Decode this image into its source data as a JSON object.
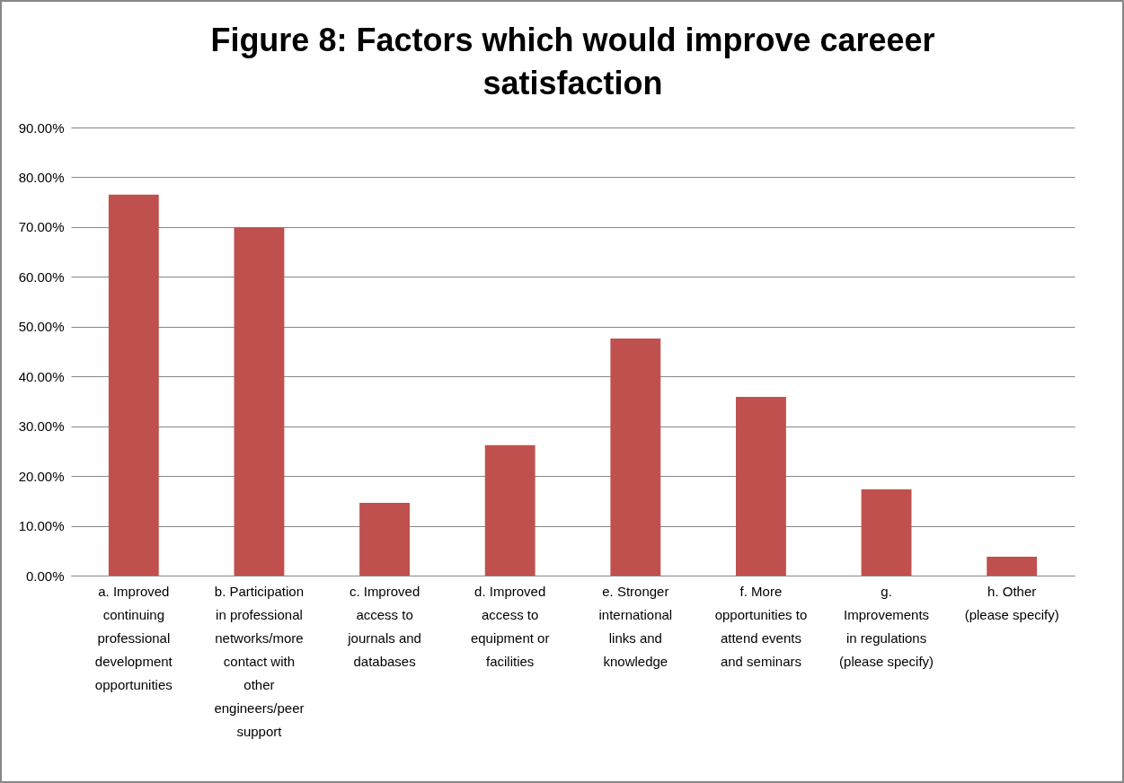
{
  "chart_data": {
    "type": "bar",
    "title": "Figure 8: Factors which would improve careeer satisfaction",
    "categories": [
      "a. Improved continuing professional development opportunities",
      "b. Participation in professional networks/more contact with other engineers/peer support",
      "c. Improved access to journals and databases",
      "d. Improved access to equipment or facilities",
      "e. Stronger international links and knowledge",
      "f. More opportunities to attend events and seminars",
      "g. Improvements in regulations (please specify)",
      "h. Other (please specify)"
    ],
    "values": [
      76.5,
      70.0,
      14.6,
      26.2,
      47.6,
      35.9,
      17.3,
      3.8
    ],
    "color": "#c0504d",
    "ylim": [
      0,
      90
    ],
    "yticks": [
      {
        "value": 0,
        "label": "0.00%"
      },
      {
        "value": 10,
        "label": "10.00%"
      },
      {
        "value": 20,
        "label": "20.00%"
      },
      {
        "value": 30,
        "label": "30.00%"
      },
      {
        "value": 40,
        "label": "40.00%"
      },
      {
        "value": 50,
        "label": "50.00%"
      },
      {
        "value": 60,
        "label": "60.00%"
      },
      {
        "value": 70,
        "label": "70.00%"
      },
      {
        "value": 80,
        "label": "80.00%"
      },
      {
        "value": 90,
        "label": "90.00%"
      }
    ],
    "grid": "y"
  }
}
